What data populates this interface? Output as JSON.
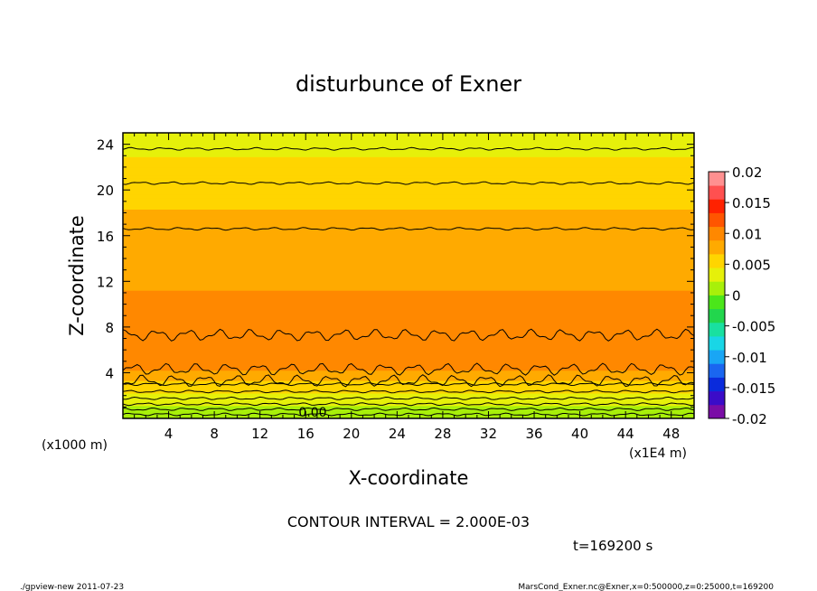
{
  "chart_data": {
    "type": "heatmap",
    "title": "disturbunce of Exner",
    "xlabel": "X-coordinate",
    "ylabel": "Z-coordinate",
    "x_unit": "(x1E4 m)",
    "y_unit": "(x1000 m)",
    "xlim": [
      0,
      50
    ],
    "ylim": [
      0,
      25
    ],
    "x_ticks": [
      "4",
      "8",
      "12",
      "16",
      "20",
      "24",
      "28",
      "32",
      "36",
      "40",
      "44",
      "48"
    ],
    "y_ticks": [
      "4",
      "8",
      "12",
      "16",
      "20",
      "24"
    ],
    "contour_interval_text": "CONTOUR INTERVAL = 2.000E-03",
    "contour_label": "0.00",
    "time_text": "t=169200 s",
    "colorbar": {
      "range": [
        -0.02,
        0.02
      ],
      "tick_labels": [
        "0.02",
        "0.015",
        "0.01",
        "0.005",
        "0",
        "-0.005",
        "-0.01",
        "-0.015",
        "-0.02"
      ],
      "colors": [
        "#7a0da6",
        "#3b0cc8",
        "#0a2bdc",
        "#1a66f0",
        "#19a6f5",
        "#19d6e6",
        "#19e0a0",
        "#22d64d",
        "#4be61a",
        "#a8f00a",
        "#e6f00a",
        "#ffd500",
        "#ffaa00",
        "#ff8800",
        "#ff5500",
        "#ff2200",
        "#ff5050",
        "#ff9090"
      ]
    },
    "field_profile": [
      {
        "z": 0,
        "value": 0.0
      },
      {
        "z": 1,
        "value": 0.002
      },
      {
        "z": 2,
        "value": 0.004
      },
      {
        "z": 3,
        "value": 0.006
      },
      {
        "z": 4,
        "value": 0.0085
      },
      {
        "z": 5,
        "value": 0.0102
      },
      {
        "z": 6,
        "value": 0.0106
      },
      {
        "z": 7,
        "value": 0.0102
      },
      {
        "z": 8,
        "value": 0.0097
      },
      {
        "z": 10,
        "value": 0.0092
      },
      {
        "z": 12,
        "value": 0.0087
      },
      {
        "z": 14,
        "value": 0.0083
      },
      {
        "z": 16,
        "value": 0.0079
      },
      {
        "z": 17,
        "value": 0.0074
      },
      {
        "z": 18,
        "value": 0.0068
      },
      {
        "z": 19.5,
        "value": 0.0062
      },
      {
        "z": 20.5,
        "value": 0.0057
      },
      {
        "z": 21.5,
        "value": 0.0052
      },
      {
        "z": 22.5,
        "value": 0.0047
      },
      {
        "z": 23.5,
        "value": 0.0041
      },
      {
        "z": 25,
        "value": 0.0036
      }
    ],
    "contour_levels_z": [
      0.35,
      0.8,
      1.25,
      1.75,
      2.35,
      3.0,
      3.3,
      4.3,
      7.3,
      16.6,
      20.6,
      23.6
    ]
  },
  "footer": {
    "left": "./gpview-new   2011-07-23",
    "right": "MarsCond_Exner.nc@Exner,x=0:500000,z=0:25000,t=169200"
  }
}
